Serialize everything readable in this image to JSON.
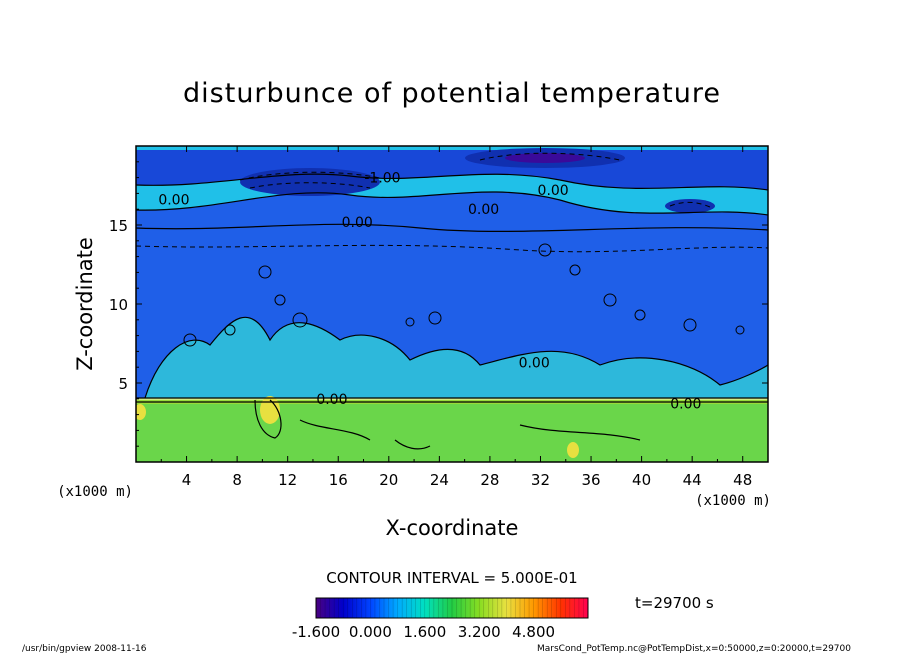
{
  "chart_data": {
    "type": "heatmap",
    "title": "disturbunce of potential temperature",
    "xlabel": "X-coordinate",
    "ylabel": "Z-coordinate",
    "x_unit": "(x1000 m)",
    "y_unit": "(x1000 m)",
    "xlim": [
      0,
      50
    ],
    "ylim": [
      0,
      20
    ],
    "x_ticks": [
      "4",
      "8",
      "12",
      "16",
      "20",
      "24",
      "28",
      "32",
      "36",
      "40",
      "44",
      "48"
    ],
    "x_tick_values": [
      4,
      8,
      12,
      16,
      20,
      24,
      28,
      32,
      36,
      40,
      44,
      48
    ],
    "y_ticks": [
      "5",
      "10",
      "15"
    ],
    "y_tick_values": [
      5,
      10,
      15
    ],
    "contour_labels": [
      {
        "text": "-1.00",
        "x": 19.5,
        "z": 18.0
      },
      {
        "text": "0.00",
        "x": 3.0,
        "z": 16.6
      },
      {
        "text": "0.00",
        "x": 33.0,
        "z": 17.2
      },
      {
        "text": "0.00",
        "x": 27.5,
        "z": 16.0
      },
      {
        "text": "0.00",
        "x": 17.5,
        "z": 15.2
      },
      {
        "text": "0.00",
        "x": 31.5,
        "z": 6.3
      },
      {
        "text": "0.00",
        "x": 15.5,
        "z": 4.0
      },
      {
        "text": "0.00",
        "x": 43.5,
        "z": 3.7
      }
    ],
    "contour_interval": "CONTOUR INTERVAL = 5.000E-01",
    "colorbar": {
      "min": -1.6,
      "max": 6.4,
      "tick_labels": [
        "-1.600",
        "0.000",
        "1.600",
        "3.200",
        "4.800"
      ],
      "tick_values": [
        -1.6,
        0.0,
        1.6,
        3.2,
        4.8
      ],
      "colors": [
        "#4a0080",
        "#0000cc",
        "#0044ff",
        "#00aaff",
        "#00e0c0",
        "#22cc44",
        "#88dd22",
        "#e8e040",
        "#ff9900",
        "#ff3300",
        "#ff0050"
      ]
    },
    "time_label": "t=29700 s"
  },
  "footer": {
    "left": "/usr/bin/gpview   2008-11-16",
    "right": "MarsCond_PotTemp.nc@PotTempDist,x=0:50000,z=0:20000,t=29700"
  },
  "colors": {
    "upper_blue": "#1f5fe8",
    "lower_green": "#6ad64a",
    "cyan": "#20c8e0",
    "dark_blue": "#1030b0",
    "deep_violet": "#3a0a9a"
  }
}
